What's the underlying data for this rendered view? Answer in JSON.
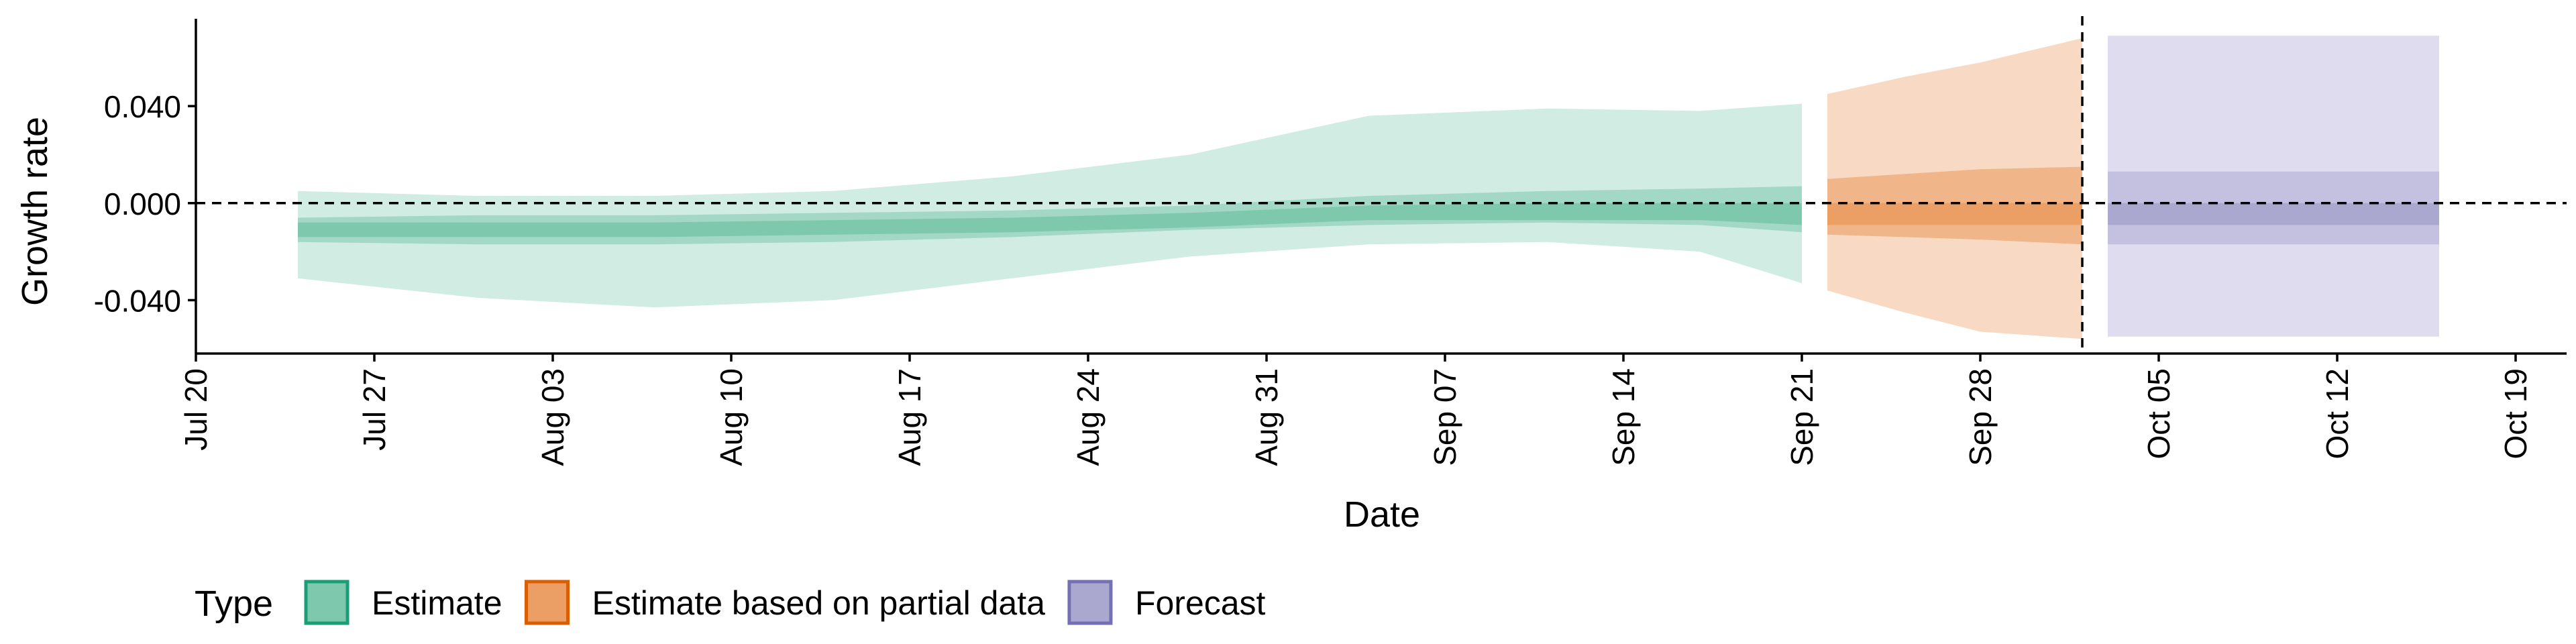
{
  "chart_data": {
    "type": "area",
    "title": "",
    "xlabel": "Date",
    "ylabel": "Growth rate",
    "ylim": [
      -0.062,
      0.076
    ],
    "yticks": [
      -0.04,
      0.0,
      0.04
    ],
    "ytick_labels": [
      "-0.040",
      "0.000",
      "0.040"
    ],
    "x_ticks": [
      {
        "date": "2020-07-20",
        "label": "Jul 20"
      },
      {
        "date": "2020-07-27",
        "label": "Jul 27"
      },
      {
        "date": "2020-08-03",
        "label": "Aug 03"
      },
      {
        "date": "2020-08-10",
        "label": "Aug 10"
      },
      {
        "date": "2020-08-17",
        "label": "Aug 17"
      },
      {
        "date": "2020-08-24",
        "label": "Aug 24"
      },
      {
        "date": "2020-08-31",
        "label": "Aug 31"
      },
      {
        "date": "2020-09-07",
        "label": "Sep 07"
      },
      {
        "date": "2020-09-14",
        "label": "Sep 14"
      },
      {
        "date": "2020-09-21",
        "label": "Sep 21"
      },
      {
        "date": "2020-09-28",
        "label": "Sep 28"
      },
      {
        "date": "2020-10-05",
        "label": "Oct 05"
      },
      {
        "date": "2020-10-12",
        "label": "Oct 12"
      },
      {
        "date": "2020-10-19",
        "label": "Oct 19"
      }
    ],
    "xlim": [
      "2020-07-20",
      "2020-10-21"
    ],
    "reference_lines": [
      {
        "orientation": "horizontal",
        "y": 0.0,
        "style": "dashed"
      },
      {
        "orientation": "vertical",
        "x": "2020-10-02",
        "style": "dashed"
      }
    ],
    "legend": {
      "title": "Type",
      "position": "bottom-left",
      "entries": [
        {
          "label": "Estimate",
          "fill": "#7ec8ae",
          "border": "#1b9e77"
        },
        {
          "label": "Estimate based on partial data",
          "fill": "#eb9f64",
          "border": "#d95f02"
        },
        {
          "label": "Forecast",
          "fill": "#aba8d0",
          "border": "#7570b3"
        }
      ]
    },
    "series": [
      {
        "name": "Estimate",
        "color": "#1b9e77",
        "x": [
          "2020-07-24",
          "2020-07-31",
          "2020-08-07",
          "2020-08-14",
          "2020-08-21",
          "2020-08-28",
          "2020-09-04",
          "2020-09-11",
          "2020-09-17",
          "2020-09-21"
        ],
        "median": [
          -0.011,
          -0.011,
          -0.011,
          -0.01,
          -0.009,
          -0.007,
          -0.004,
          -0.004,
          -0.004,
          -0.005
        ],
        "lower_90": [
          -0.031,
          -0.039,
          -0.043,
          -0.04,
          -0.031,
          -0.022,
          -0.017,
          -0.016,
          -0.02,
          -0.033
        ],
        "upper_90": [
          0.005,
          0.003,
          0.003,
          0.005,
          0.011,
          0.02,
          0.036,
          0.039,
          0.038,
          0.041
        ],
        "lower_50": [
          -0.016,
          -0.017,
          -0.017,
          -0.016,
          -0.014,
          -0.011,
          -0.009,
          -0.008,
          -0.009,
          -0.012
        ],
        "upper_50": [
          -0.006,
          -0.005,
          -0.005,
          -0.004,
          -0.003,
          -0.001,
          0.003,
          0.005,
          0.006,
          0.007
        ],
        "lower_20": [
          -0.014,
          -0.014,
          -0.014,
          -0.013,
          -0.012,
          -0.01,
          -0.007,
          -0.007,
          -0.007,
          -0.009
        ],
        "upper_20": [
          -0.008,
          -0.008,
          -0.008,
          -0.007,
          -0.006,
          -0.004,
          -0.001,
          0.0,
          0.0,
          0.0
        ]
      },
      {
        "name": "Estimate based on partial data",
        "color": "#d95f02",
        "x": [
          "2020-09-22",
          "2020-09-25",
          "2020-09-28",
          "2020-10-02"
        ],
        "median": [
          -0.004,
          -0.005,
          -0.006,
          -0.005
        ],
        "lower_90": [
          -0.036,
          -0.045,
          -0.053,
          -0.056
        ],
        "upper_90": [
          0.045,
          0.052,
          0.058,
          0.068
        ],
        "lower_50": [
          -0.013,
          -0.014,
          -0.015,
          -0.017
        ],
        "upper_50": [
          0.01,
          0.012,
          0.014,
          0.015
        ],
        "lower_20": [
          -0.009,
          -0.009,
          -0.009,
          -0.009
        ],
        "upper_20": [
          0.0,
          0.0,
          0.0,
          0.0
        ]
      },
      {
        "name": "Forecast",
        "color": "#7570b3",
        "x": [
          "2020-10-03",
          "2020-10-16"
        ],
        "median": [
          0.002,
          0.002
        ],
        "lower_90": [
          -0.055,
          -0.055
        ],
        "upper_90": [
          0.069,
          0.069
        ],
        "lower_50": [
          -0.017,
          -0.017
        ],
        "upper_50": [
          0.013,
          0.013
        ],
        "lower_20": [
          -0.009,
          -0.009
        ],
        "upper_20": [
          0.0,
          0.0
        ]
      }
    ]
  }
}
